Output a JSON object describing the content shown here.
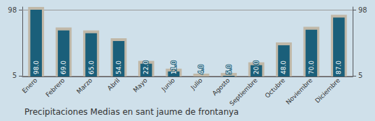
{
  "chart_data": {
    "type": "bar",
    "title": "Precipitaciones Medias en sant jaume de frontanya",
    "categories": [
      "Enero",
      "Febrero",
      "Marzo",
      "Abril",
      "Mayo",
      "Junio",
      "Julio",
      "Agosto",
      "Septiembre",
      "Octubre",
      "Noviembre",
      "Diciembre"
    ],
    "series": [
      {
        "color": "#c0b8a8",
        "values": [
          102.0,
          73.0,
          69.0,
          58.0,
          26.0,
          15.0,
          8.0,
          9.0,
          24.0,
          52.0,
          74.0,
          91.0
        ]
      },
      {
        "color": "#1a5f7a",
        "values": [
          98.0,
          69.0,
          65.0,
          54.0,
          22.0,
          11.0,
          4.0,
          5.0,
          20.0,
          48.0,
          70.0,
          87.0
        ],
        "value_labels": [
          "98.0",
          "69.0",
          "65.0",
          "54.0",
          "22.0",
          "11.0",
          "4.0",
          "5.0",
          "20.0",
          "48.0",
          "70.0",
          "87.0"
        ]
      }
    ],
    "ylim": [
      4.0,
      102.0
    ],
    "yticks": [
      5.0,
      98.0
    ],
    "y2lim": [
      4.0,
      102.0
    ],
    "y2ticks": [
      5.0,
      98.0
    ],
    "grid": true,
    "data_labels": true
  }
}
